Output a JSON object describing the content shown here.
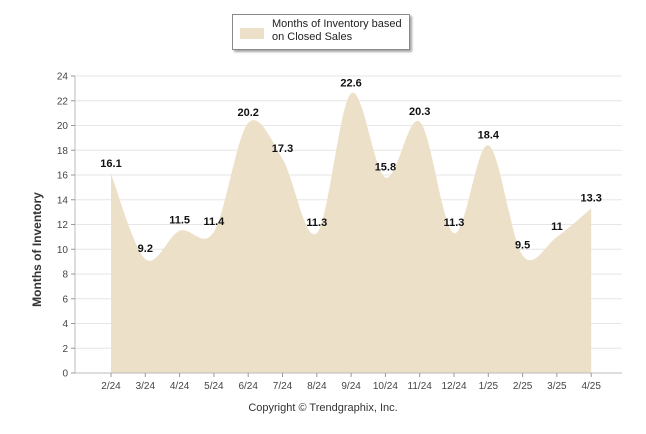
{
  "chart_data": {
    "type": "area",
    "categories": [
      "2/24",
      "3/24",
      "4/24",
      "5/24",
      "6/24",
      "7/24",
      "8/24",
      "9/24",
      "10/24",
      "11/24",
      "12/24",
      "1/25",
      "2/25",
      "3/25",
      "4/25"
    ],
    "series": [
      {
        "name": "Months of Inventory based on Closed Sales",
        "values": [
          16.1,
          9.2,
          11.5,
          11.4,
          20.2,
          17.3,
          11.3,
          22.6,
          15.8,
          20.3,
          11.3,
          18.4,
          9.5,
          11,
          13.3
        ],
        "labels": [
          "16.1",
          "9.2",
          "11.5",
          "11.4",
          "20.2",
          "17.3",
          "11.3",
          "22.6",
          "15.8",
          "20.3",
          "11.3",
          "18.4",
          "9.5",
          "11",
          "13.3"
        ]
      }
    ],
    "ylabel": "Months of Inventory",
    "xlabel": "",
    "ylim": [
      0,
      24
    ],
    "yticks": [
      0,
      2,
      4,
      6,
      8,
      10,
      12,
      14,
      16,
      18,
      20,
      22,
      24
    ],
    "grid": true,
    "legend": "top-center",
    "fill_color": "#ede0c8"
  },
  "legend": {
    "line1": "Months of Inventory based",
    "line2": "on Closed Sales"
  },
  "footer": {
    "credit": "Copyright © Trendgraphix, Inc."
  }
}
